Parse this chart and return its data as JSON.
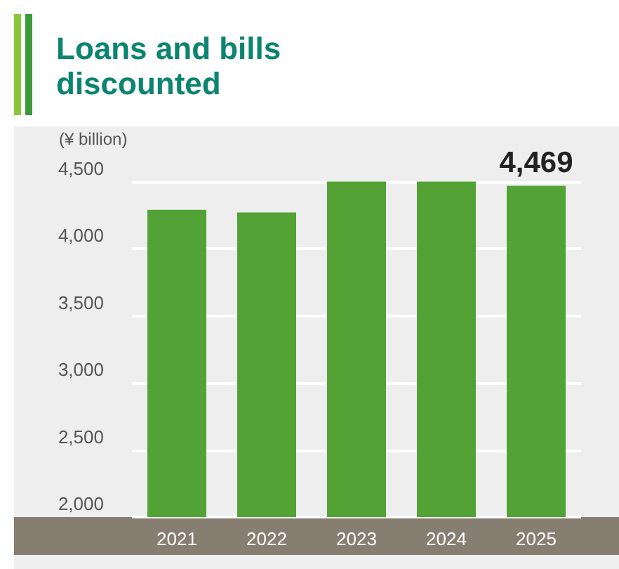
{
  "chart_data": {
    "type": "bar",
    "title": "Loans and bills discounted",
    "ylabel": "(¥ billion)",
    "categories": [
      "2021",
      "2022",
      "2023",
      "2024",
      "2025"
    ],
    "values": [
      4290,
      4270,
      4500,
      4500,
      4469
    ],
    "value_labels": [
      null,
      null,
      null,
      null,
      "4,469"
    ],
    "color": "#52a236",
    "ylim": [
      2000,
      4500
    ],
    "yticks": [
      {
        "value": 2000,
        "label": "2,000"
      },
      {
        "value": 2500,
        "label": "2,500"
      },
      {
        "value": 3000,
        "label": "3,000"
      },
      {
        "value": 3500,
        "label": "3,500"
      },
      {
        "value": 4000,
        "label": "4,000"
      },
      {
        "value": 4500,
        "label": "4,500"
      }
    ],
    "grid": "y"
  }
}
